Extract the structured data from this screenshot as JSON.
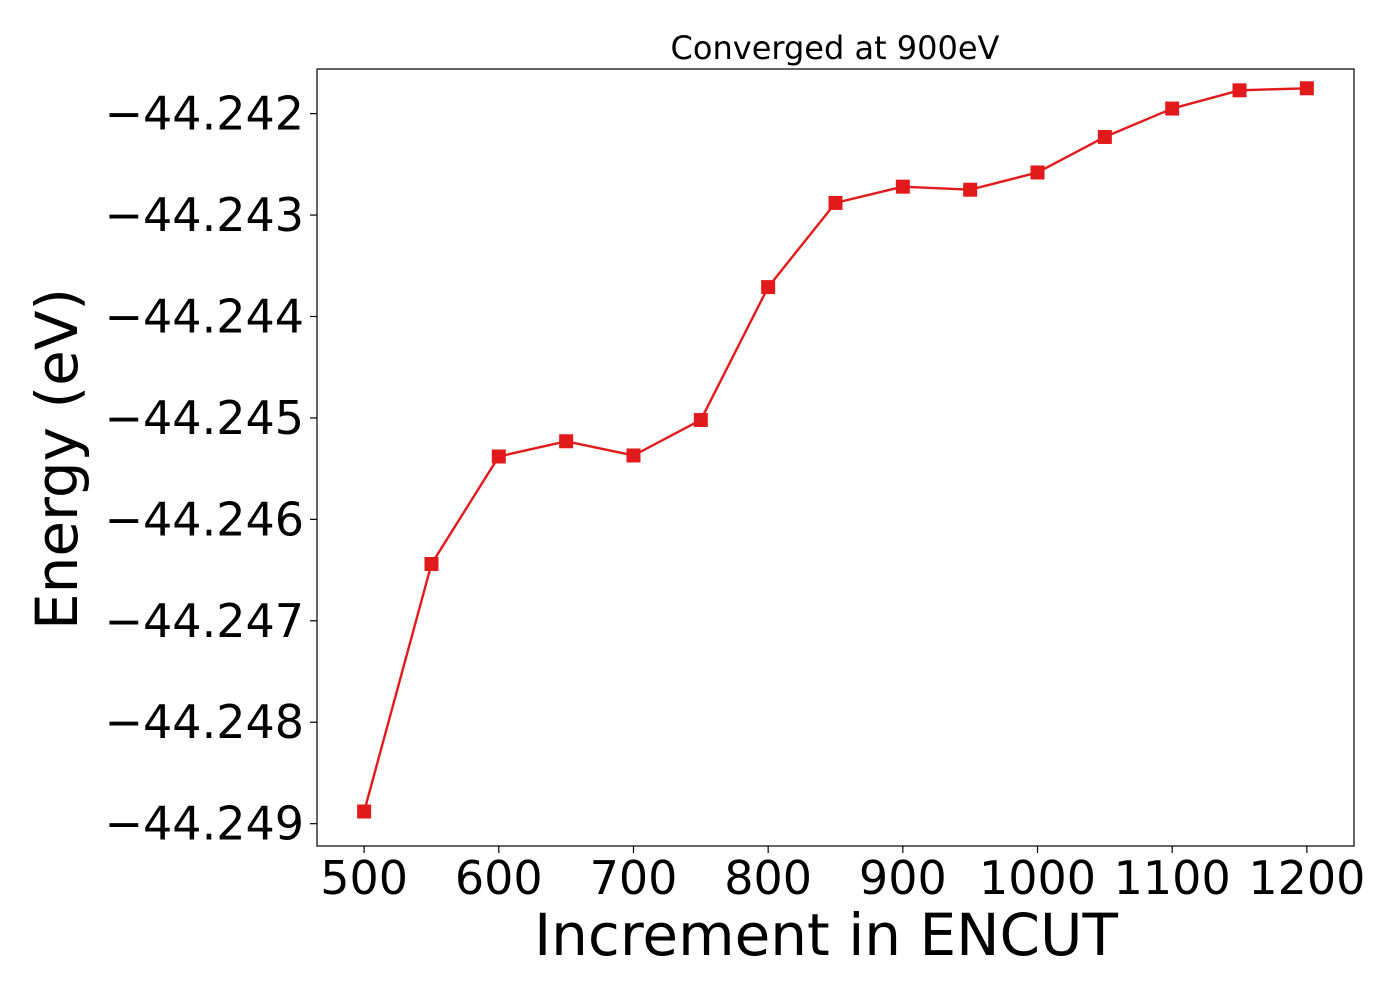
{
  "chart_data": {
    "type": "line",
    "title": "Converged at 900eV",
    "xlabel": "Increment in ENCUT",
    "ylabel": "Energy (eV)",
    "x": [
      500,
      550,
      600,
      650,
      700,
      750,
      800,
      850,
      900,
      950,
      1000,
      1050,
      1100,
      1150,
      1200
    ],
    "series": [
      {
        "name": "",
        "color": "#e31a1c",
        "marker": "square",
        "values": [
          -44.24888,
          -44.24644,
          -44.24538,
          -44.24523,
          -44.24537,
          -44.24502,
          -44.24371,
          -44.24288,
          -44.24272,
          -44.24275,
          -44.24258,
          -44.24223,
          -44.24195,
          -44.24177,
          -44.24175
        ]
      }
    ],
    "xticks": [
      500,
      600,
      700,
      800,
      900,
      1000,
      1100,
      1200
    ],
    "xtick_labels": [
      "500",
      "600",
      "700",
      "800",
      "900",
      "1000",
      "1100",
      "1200"
    ],
    "yticks": [
      -44.249,
      -44.248,
      -44.247,
      -44.246,
      -44.245,
      -44.244,
      -44.243,
      -44.242
    ],
    "ytick_labels": [
      "−44.249",
      "−44.248",
      "−44.247",
      "−44.246",
      "−44.245",
      "−44.244",
      "−44.243",
      "−44.242"
    ],
    "xlim": [
      465,
      1235
    ],
    "ylim": [
      -44.24922,
      -44.24156
    ],
    "grid": false
  }
}
